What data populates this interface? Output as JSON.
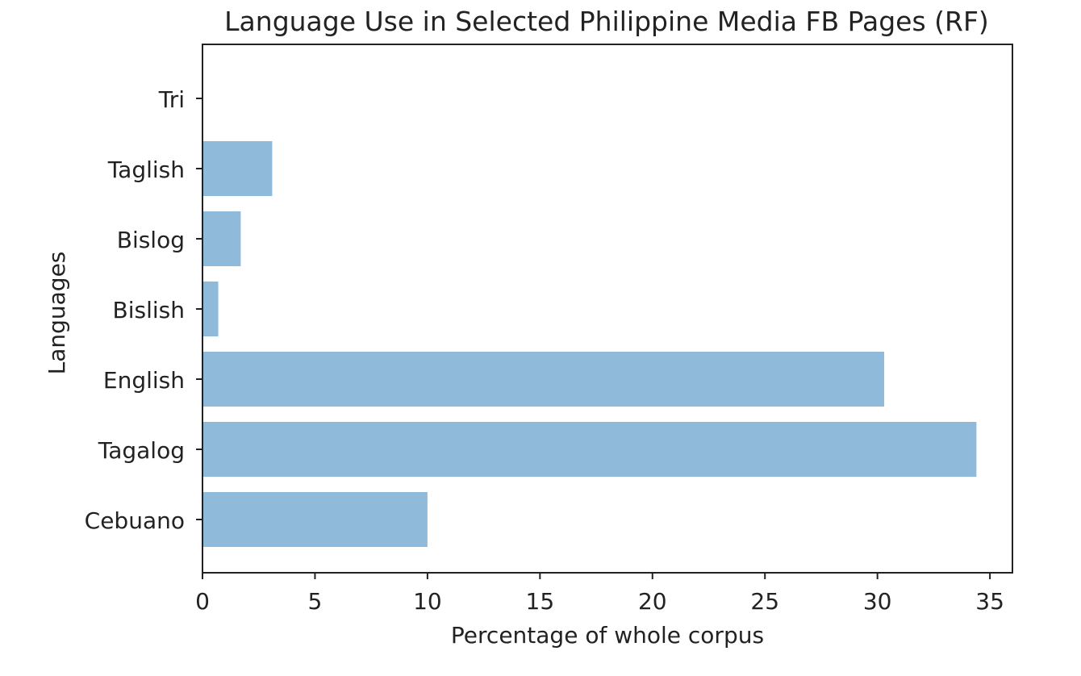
{
  "chart_data": {
    "type": "bar",
    "orientation": "horizontal",
    "title": "Language Use in Selected Philippine Media FB Pages (RF)",
    "xlabel": "Percentage of whole corpus",
    "ylabel": "Languages",
    "categories": [
      "Cebuano",
      "Tagalog",
      "English",
      "Bislish",
      "Bislog",
      "Taglish",
      "Tri"
    ],
    "values": [
      10.0,
      34.4,
      30.3,
      0.7,
      1.7,
      3.1,
      0.0
    ],
    "xlim": [
      0,
      36
    ],
    "xticks": [
      0,
      5,
      10,
      15,
      20,
      25,
      30,
      35
    ],
    "grid": false,
    "bar_color": "#8fbada",
    "axis_color": "#222222"
  }
}
